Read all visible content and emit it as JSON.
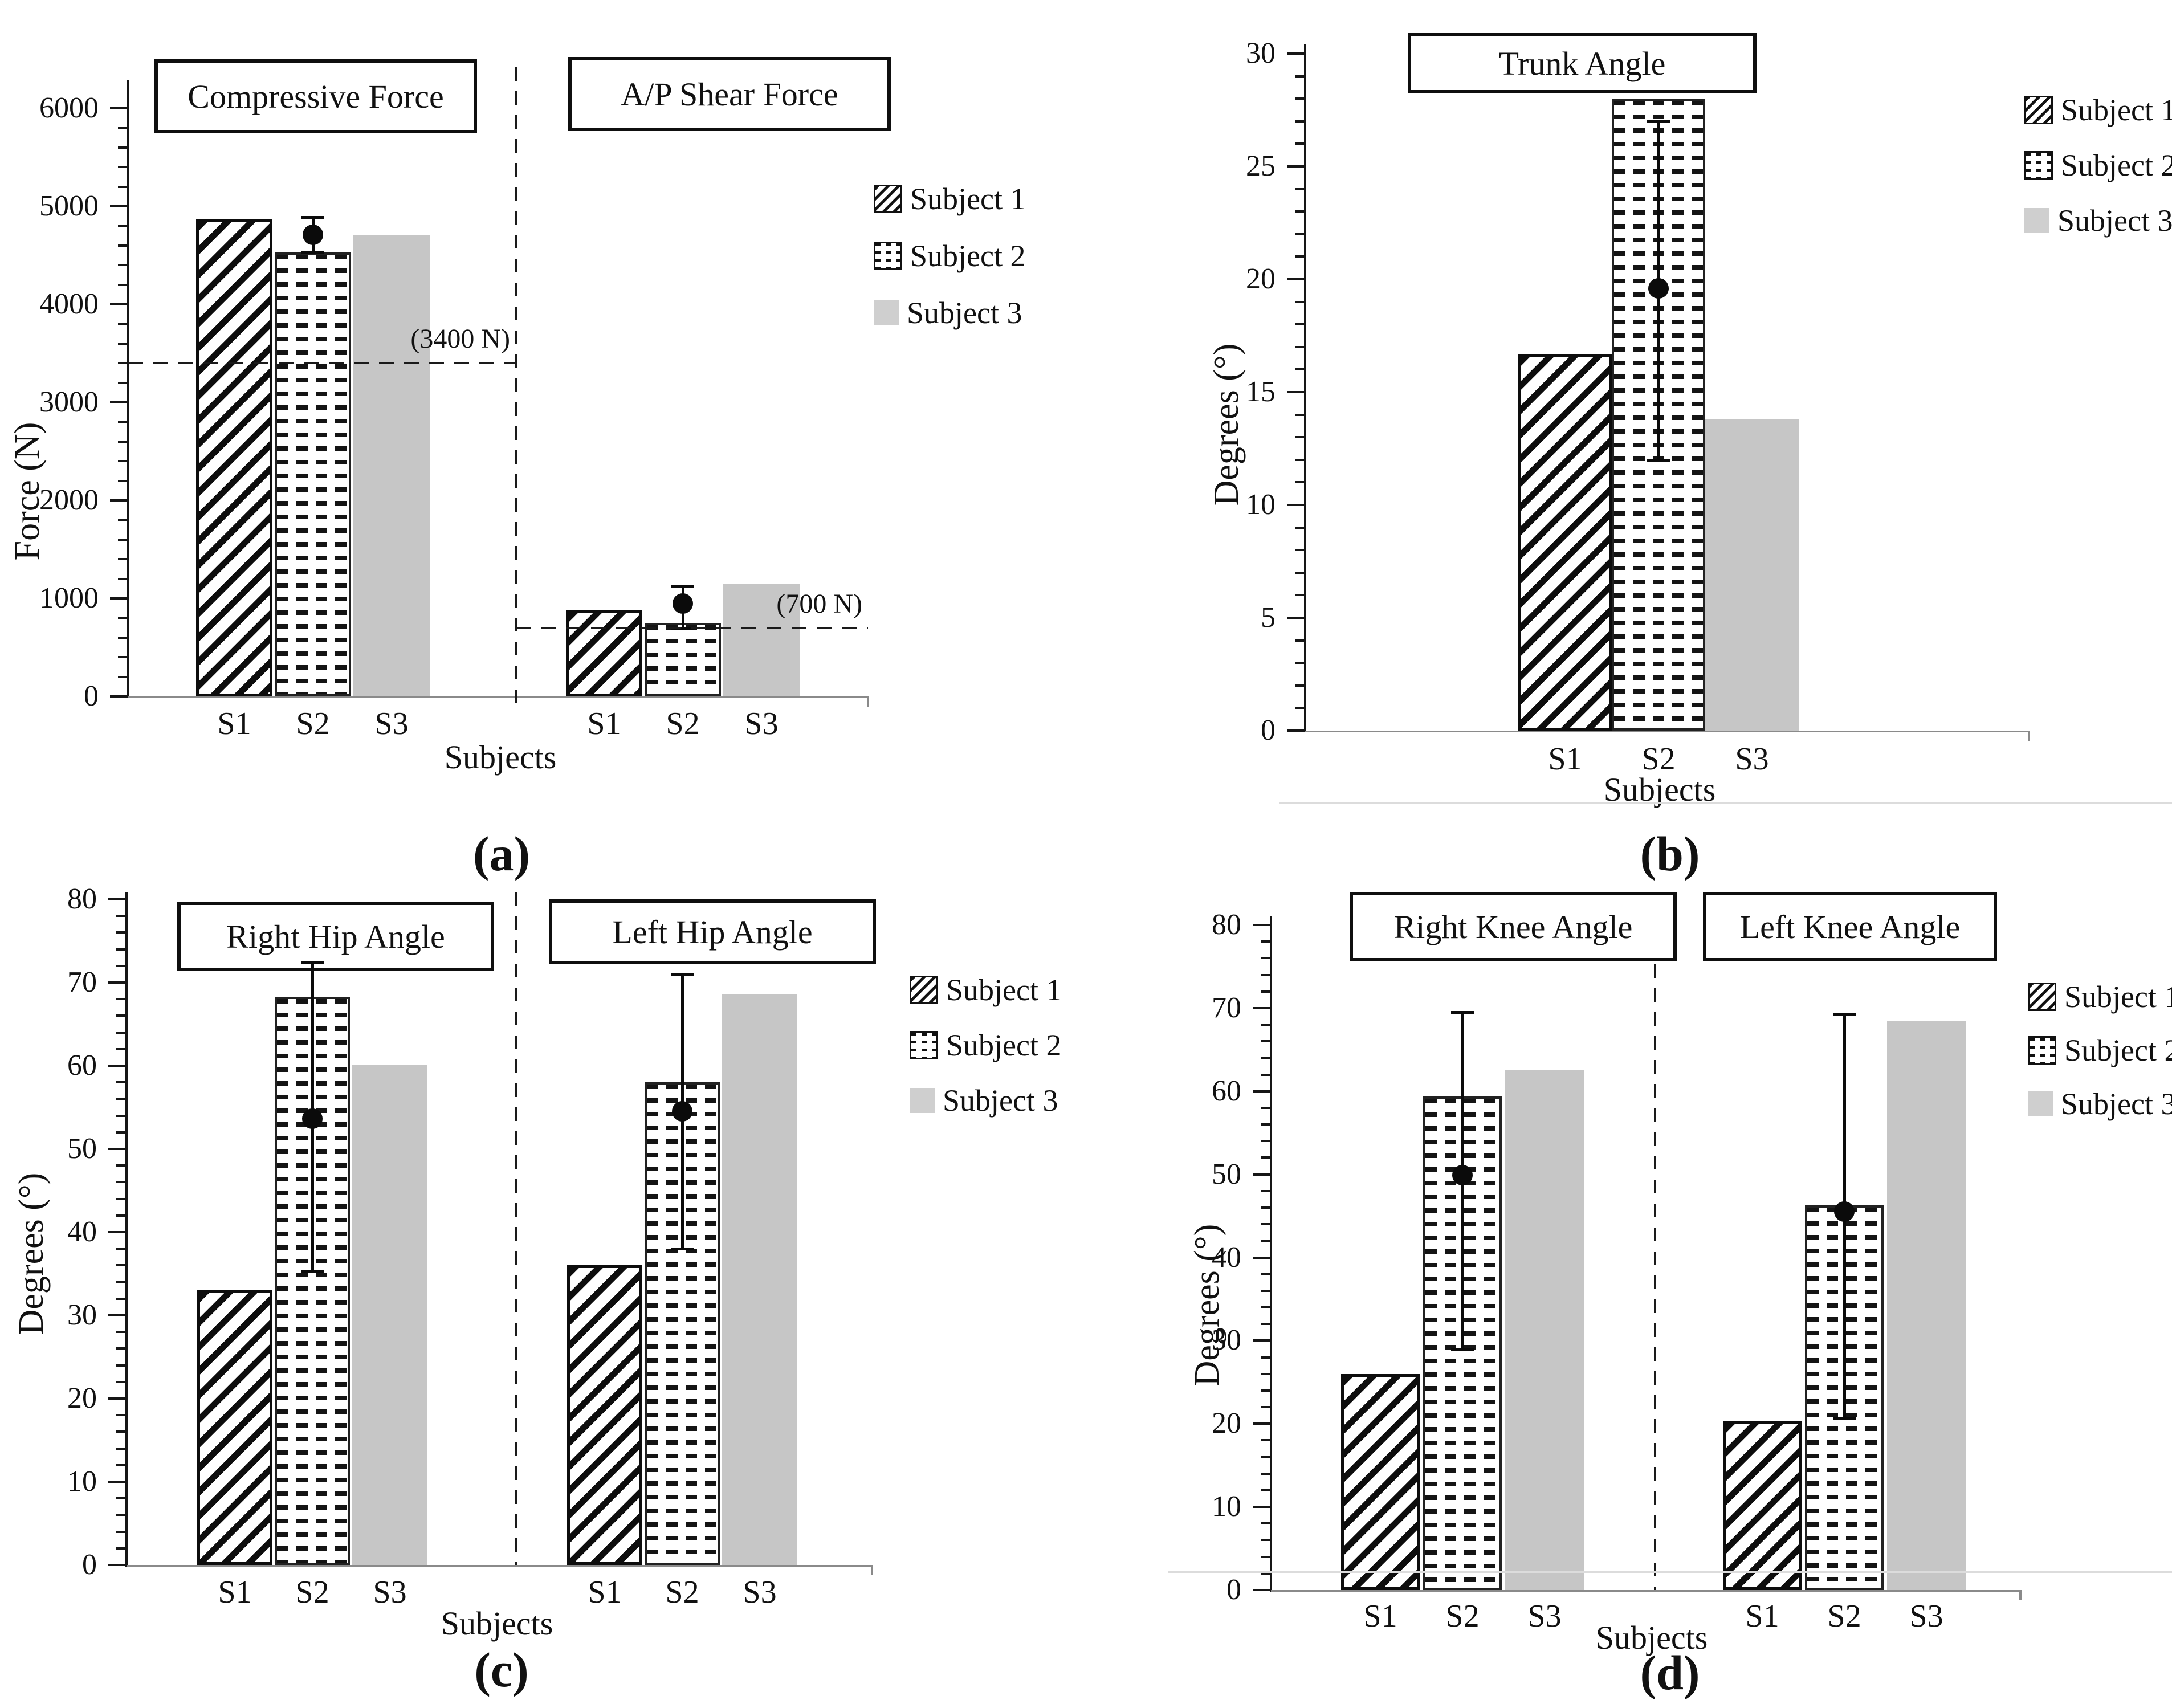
{
  "legend_labels": [
    "Subject 1",
    "Subject 2",
    "Subject 3"
  ],
  "colors": {
    "ink": "#111111",
    "subject1_pattern": "black-diagonal-hatch",
    "subject2_pattern": "black-dashed-dots",
    "subject3_fill": "#c6c6c6",
    "axis_gray": "#8a8a8a"
  },
  "chart_data": [
    {
      "id": "a",
      "type": "bar",
      "caption": "(a)",
      "ylabel": "Force (N)",
      "xlabel": "Subjects",
      "ylim": [
        0,
        6000
      ],
      "yticks": [
        0,
        1000,
        2000,
        3000,
        4000,
        5000,
        6000
      ],
      "minor_tick_step": 200,
      "grid": false,
      "legend_position": "right-top",
      "groups": [
        {
          "title": "Compressive Force",
          "categories": [
            "S1",
            "S2",
            "S3"
          ],
          "series": [
            "Subject 1",
            "Subject 2",
            "Subject 3"
          ],
          "values": [
            4870,
            4530,
            4710
          ],
          "error_bar": {
            "category": "S2",
            "mean": 4710,
            "upper": 4890,
            "lower": 4530
          },
          "ref_line": {
            "value": 3400,
            "label": "(3400 N)"
          }
        },
        {
          "title": "A/P Shear Force",
          "categories": [
            "S1",
            "S2",
            "S3"
          ],
          "series": [
            "Subject 1",
            "Subject 2",
            "Subject 3"
          ],
          "values": [
            880,
            750,
            1150
          ],
          "error_bar": {
            "category": "S2",
            "mean": 950,
            "upper": 1120,
            "lower": 700
          },
          "ref_line": {
            "value": 700,
            "label": "(700 N)"
          }
        }
      ]
    },
    {
      "id": "b",
      "type": "bar",
      "caption": "(b)",
      "ylabel": "Degrees (°)",
      "xlabel": "Subjects",
      "ylim": [
        0,
        30
      ],
      "yticks": [
        0,
        5,
        10,
        15,
        20,
        25,
        30
      ],
      "minor_tick_step": 1,
      "grid": false,
      "legend_position": "right-top",
      "groups": [
        {
          "title": "Trunk Angle",
          "categories": [
            "S1",
            "S2",
            "S3"
          ],
          "series": [
            "Subject 1",
            "Subject 2",
            "Subject 3"
          ],
          "values": [
            16.7,
            28,
            13.8
          ],
          "error_bar": {
            "category": "S2",
            "mean": 19.6,
            "upper": 27,
            "lower": 12
          }
        }
      ]
    },
    {
      "id": "c",
      "type": "bar",
      "caption": "(c)",
      "ylabel": "Degrees (°)",
      "xlabel": "Subjects",
      "ylim": [
        0,
        80
      ],
      "yticks": [
        0,
        10,
        20,
        30,
        40,
        50,
        60,
        70,
        80
      ],
      "minor_tick_step": 2,
      "grid": false,
      "legend_position": "right-top",
      "groups": [
        {
          "title": "Right Hip Angle",
          "categories": [
            "S1",
            "S2",
            "S3"
          ],
          "series": [
            "Subject 1",
            "Subject 2",
            "Subject 3"
          ],
          "values": [
            33,
            68.3,
            60.1
          ],
          "error_bar": {
            "category": "S2",
            "mean": 53.6,
            "upper": 72.5,
            "lower": 35.3
          }
        },
        {
          "title": "Left Hip Angle",
          "categories": [
            "S1",
            "S2",
            "S3"
          ],
          "series": [
            "Subject 1",
            "Subject 2",
            "Subject 3"
          ],
          "values": [
            36,
            58,
            68.6
          ],
          "error_bar": {
            "category": "S2",
            "mean": 54.5,
            "upper": 71,
            "lower": 38
          }
        }
      ]
    },
    {
      "id": "d",
      "type": "bar",
      "caption": "(d)",
      "ylabel": "Degrees (°)",
      "xlabel": "Subjects",
      "ylim": [
        0,
        80
      ],
      "yticks": [
        0,
        10,
        20,
        30,
        40,
        50,
        60,
        70,
        80
      ],
      "minor_tick_step": 2,
      "grid": false,
      "legend_position": "right-top",
      "groups": [
        {
          "title": "Right Knee Angle",
          "categories": [
            "S1",
            "S2",
            "S3"
          ],
          "series": [
            "Subject 1",
            "Subject 2",
            "Subject 3"
          ],
          "values": [
            26,
            59.4,
            62.5
          ],
          "error_bar": {
            "category": "S2",
            "mean": 49.9,
            "upper": 69.5,
            "lower": 29
          }
        },
        {
          "title": "Left Knee Angle",
          "categories": [
            "S1",
            "S2",
            "S3"
          ],
          "series": [
            "Subject 1",
            "Subject 2",
            "Subject 3"
          ],
          "values": [
            20.3,
            46.3,
            68.5
          ],
          "error_bar": {
            "category": "S2",
            "mean": 45.5,
            "upper": 69.3,
            "lower": 20.6
          }
        }
      ]
    }
  ]
}
